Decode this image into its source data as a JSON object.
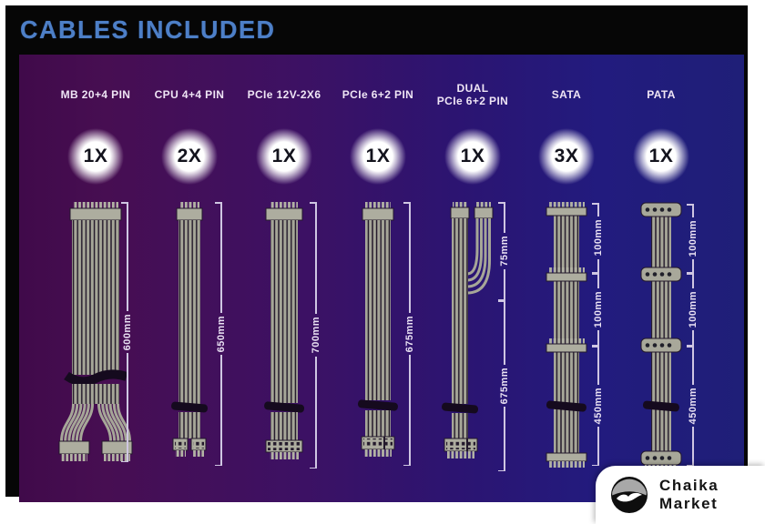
{
  "title": "CABLES INCLUDED",
  "columns": [
    {
      "id": "mb",
      "label": "MB 20+4 PIN",
      "qty": "1X",
      "segments": [
        {
          "len": "600mm",
          "from": 222,
          "to": 508
        }
      ]
    },
    {
      "id": "cpu",
      "label": "CPU 4+4 PIN",
      "qty": "2X",
      "segments": [
        {
          "len": "650mm",
          "from": 222,
          "to": 512
        }
      ]
    },
    {
      "id": "pcie12v",
      "label": "PCIe 12V-2X6",
      "qty": "1X",
      "segments": [
        {
          "len": "700mm",
          "from": 222,
          "to": 515
        }
      ]
    },
    {
      "id": "pcie62",
      "label": "PCIe 6+2 PIN",
      "qty": "1X",
      "segments": [
        {
          "len": "675mm",
          "from": 222,
          "to": 512
        }
      ]
    },
    {
      "id": "dual",
      "label": "DUAL",
      "label2": "PCIe 6+2 PIN",
      "qty": "1X",
      "segments": [
        {
          "len": "75mm",
          "from": 222,
          "to": 330
        },
        {
          "len": "675mm",
          "from": 330,
          "to": 518
        }
      ]
    },
    {
      "id": "sata",
      "label": "SATA",
      "qty": "3X",
      "segments": [
        {
          "len": "100mm",
          "from": 223,
          "to": 300
        },
        {
          "len": "100mm",
          "from": 300,
          "to": 380
        },
        {
          "len": "450mm",
          "from": 380,
          "to": 512
        }
      ]
    },
    {
      "id": "pata",
      "label": "PATA",
      "qty": "1X",
      "segments": [
        {
          "len": "100mm",
          "from": 224,
          "to": 300
        },
        {
          "len": "100mm",
          "from": 300,
          "to": 380
        },
        {
          "len": "450mm",
          "from": 380,
          "to": 512
        }
      ]
    }
  ],
  "watermark": {
    "line1": "Chaika",
    "line2": "Market"
  },
  "colors": {
    "title_accent": "#4d7fc7",
    "panel_left": "#400a4a",
    "panel_right": "#1f1f78",
    "wire": "#a6a698",
    "measure_line": "#cfc6e2",
    "badge_glow": "#ffffff"
  }
}
